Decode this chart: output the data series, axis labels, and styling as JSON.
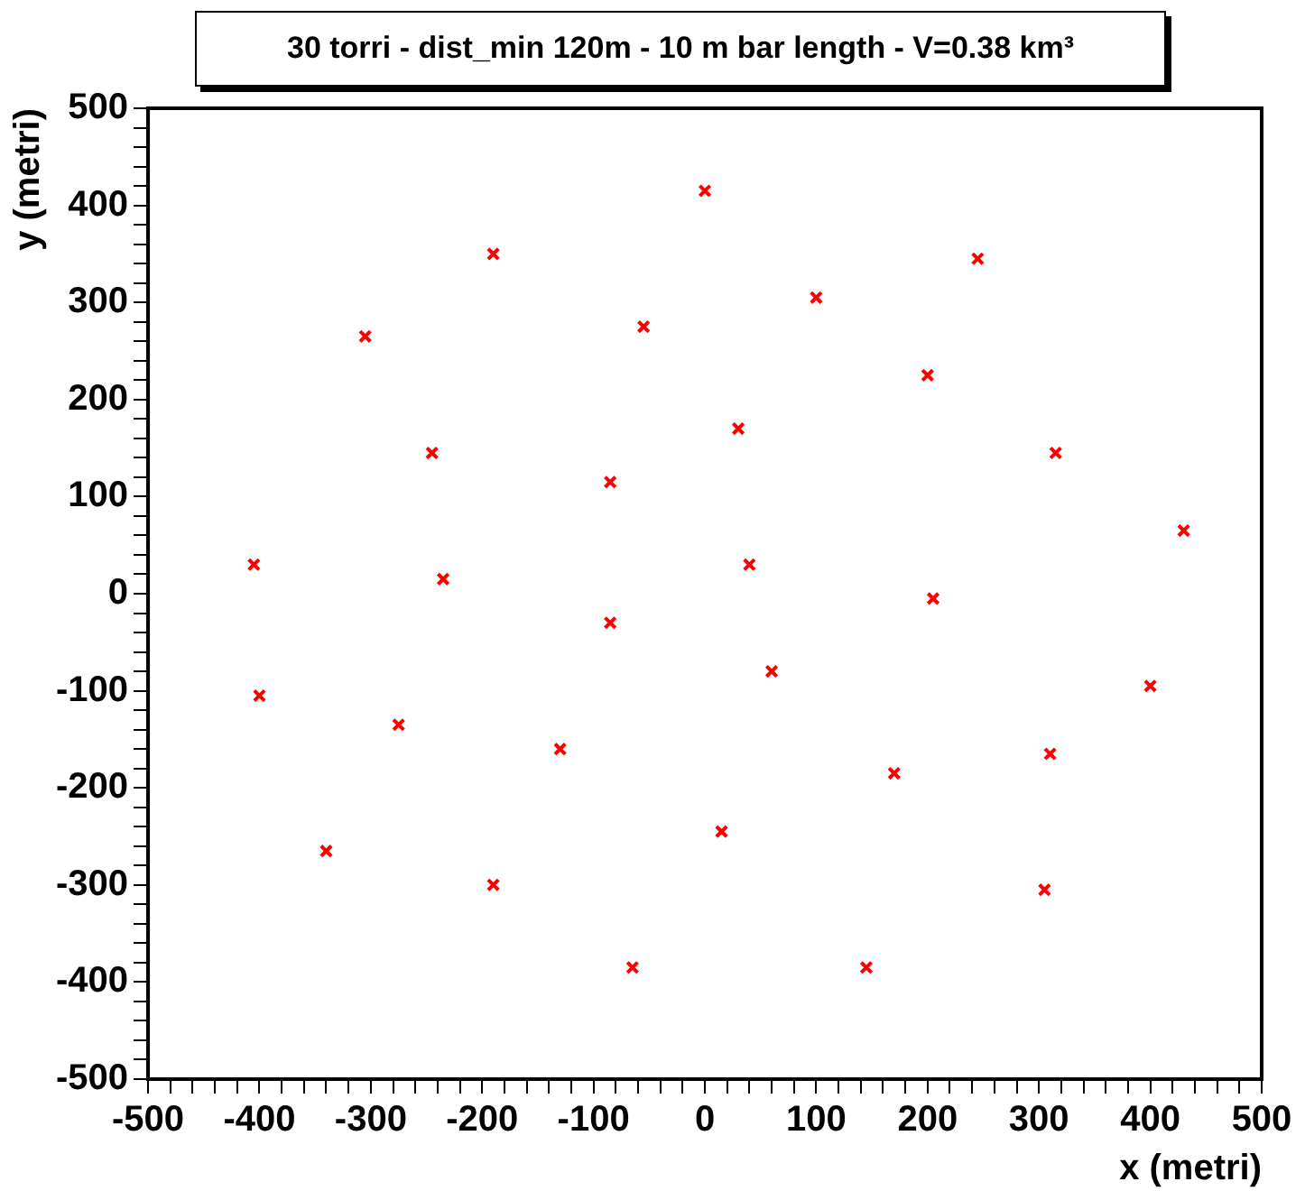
{
  "chart_data": {
    "type": "scatter",
    "title": "30 torri - dist_min 120m - 10 m bar length - V=0.38 km³",
    "xlabel": "x (metri)",
    "ylabel": "y (metri)",
    "x": [
      0,
      -190,
      245,
      -305,
      -55,
      100,
      200,
      -245,
      -85,
      30,
      315,
      430,
      -405,
      -235,
      40,
      205,
      -85,
      60,
      -400,
      400,
      -275,
      -130,
      170,
      310,
      -340,
      15,
      -190,
      305,
      -65,
      145
    ],
    "values": [
      415,
      350,
      345,
      265,
      275,
      305,
      225,
      145,
      115,
      170,
      145,
      65,
      30,
      15,
      30,
      -5,
      -30,
      -80,
      -105,
      -95,
      -135,
      -160,
      -185,
      -165,
      -265,
      -245,
      -300,
      -305,
      -385,
      -385
    ],
    "color": "#ff0000",
    "marker": "cross",
    "grid": false,
    "legend": false,
    "xlim": [
      -500,
      500
    ],
    "ylim": [
      -500,
      500
    ],
    "xticks": [
      -500,
      {
        "value": -480,
        "label": null
      },
      {
        "value": -460,
        "label": null
      },
      {
        "value": -440,
        "label": null
      },
      {
        "value": -420,
        "label": null
      },
      -400,
      {
        "value": -380,
        "label": null
      },
      {
        "value": -360,
        "label": null
      },
      {
        "value": -340,
        "label": null
      },
      {
        "value": -320,
        "label": null
      },
      -300,
      {
        "value": -280,
        "label": null
      },
      {
        "value": -260,
        "label": null
      },
      {
        "value": -240,
        "label": null
      },
      {
        "value": -220,
        "label": null
      },
      -200,
      {
        "value": -180,
        "label": null
      },
      {
        "value": -160,
        "label": null
      },
      {
        "value": -140,
        "label": null
      },
      {
        "value": -120,
        "label": null
      },
      -100,
      {
        "value": -80,
        "label": null
      },
      {
        "value": -60,
        "label": null
      },
      {
        "value": -40,
        "label": null
      },
      {
        "value": -20,
        "label": null
      },
      0,
      {
        "value": 20,
        "label": null
      },
      {
        "value": 40,
        "label": null
      },
      {
        "value": 60,
        "label": null
      },
      {
        "value": 80,
        "label": null
      },
      100,
      {
        "value": 120,
        "label": null
      },
      {
        "value": 140,
        "label": null
      },
      {
        "value": 160,
        "label": null
      },
      {
        "value": 180,
        "label": null
      },
      200,
      {
        "value": 220,
        "label": null
      },
      {
        "value": 240,
        "label": null
      },
      {
        "value": 260,
        "label": null
      },
      {
        "value": 280,
        "label": null
      },
      300,
      {
        "value": 320,
        "label": null
      },
      {
        "value": 340,
        "label": null
      },
      {
        "value": 360,
        "label": null
      },
      {
        "value": 380,
        "label": null
      },
      400,
      {
        "value": 420,
        "label": null
      },
      {
        "value": 440,
        "label": null
      },
      {
        "value": 460,
        "label": null
      },
      {
        "value": 480,
        "label": null
      },
      500
    ],
    "yticks": [
      -500,
      {
        "value": -480,
        "label": null
      },
      {
        "value": -460,
        "label": null
      },
      {
        "value": -440,
        "label": null
      },
      {
        "value": -420,
        "label": null
      },
      -400,
      {
        "value": -380,
        "label": null
      },
      {
        "value": -360,
        "label": null
      },
      {
        "value": -340,
        "label": null
      },
      {
        "value": -320,
        "label": null
      },
      -300,
      {
        "value": -280,
        "label": null
      },
      {
        "value": -260,
        "label": null
      },
      {
        "value": -240,
        "label": null
      },
      {
        "value": -220,
        "label": null
      },
      -200,
      {
        "value": -180,
        "label": null
      },
      {
        "value": -160,
        "label": null
      },
      {
        "value": -140,
        "label": null
      },
      {
        "value": -120,
        "label": null
      },
      -100,
      {
        "value": -80,
        "label": null
      },
      {
        "value": -60,
        "label": null
      },
      {
        "value": -40,
        "label": null
      },
      {
        "value": -20,
        "label": null
      },
      0,
      {
        "value": 20,
        "label": null
      },
      {
        "value": 40,
        "label": null
      },
      {
        "value": 60,
        "label": null
      },
      {
        "value": 80,
        "label": null
      },
      100,
      {
        "value": 120,
        "label": null
      },
      {
        "value": 140,
        "label": null
      },
      {
        "value": 160,
        "label": null
      },
      {
        "value": 180,
        "label": null
      },
      200,
      {
        "value": 220,
        "label": null
      },
      {
        "value": 240,
        "label": null
      },
      {
        "value": 260,
        "label": null
      },
      {
        "value": 280,
        "label": null
      },
      300,
      {
        "value": 320,
        "label": null
      },
      {
        "value": 340,
        "label": null
      },
      {
        "value": 360,
        "label": null
      },
      {
        "value": 380,
        "label": null
      },
      400,
      {
        "value": 420,
        "label": null
      },
      {
        "value": 440,
        "label": null
      },
      {
        "value": 460,
        "label": null
      },
      {
        "value": 480,
        "label": null
      },
      500
    ]
  }
}
